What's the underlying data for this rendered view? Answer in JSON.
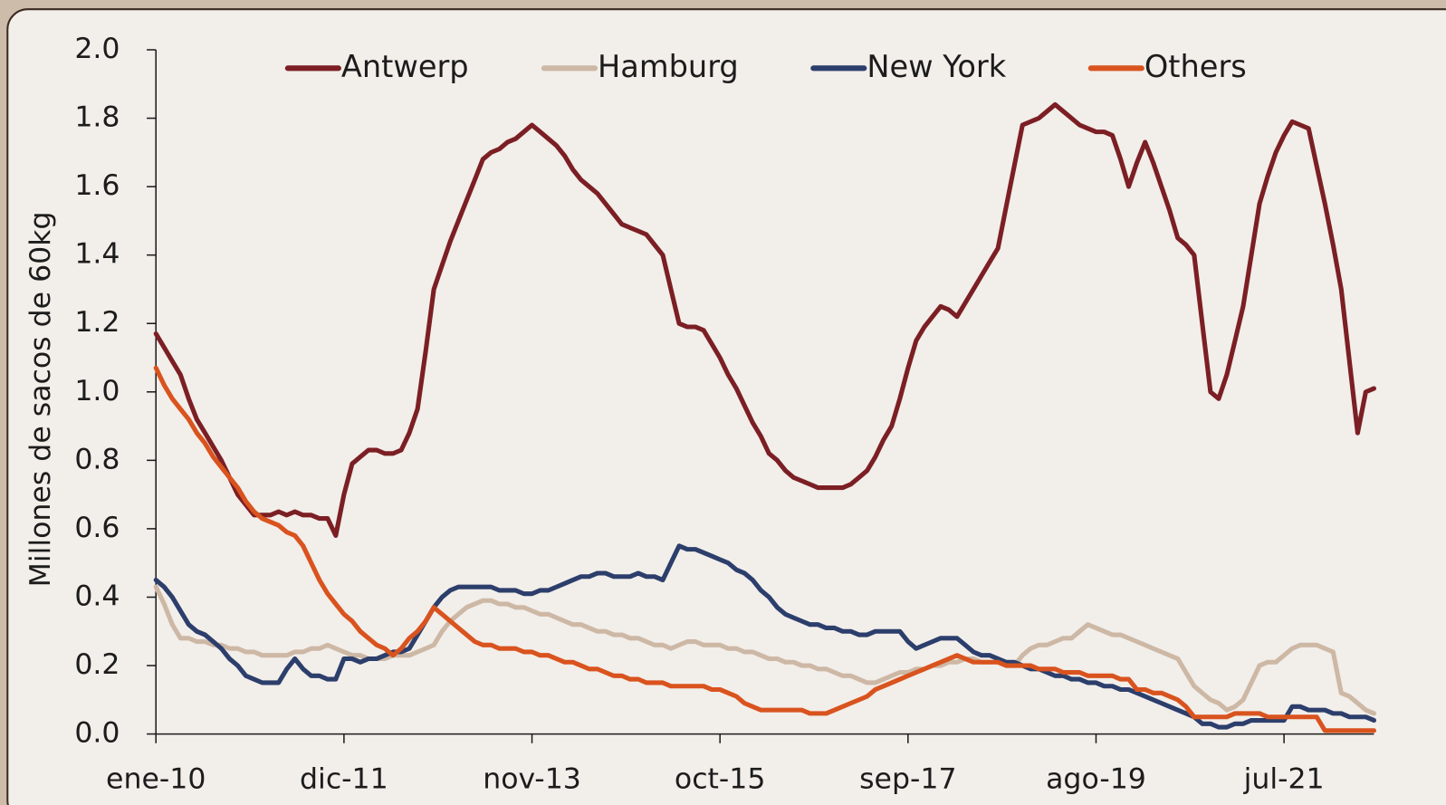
{
  "chart_data": {
    "type": "line",
    "y_label": "Millones de sacos de 60kg",
    "legend": "top",
    "grid": false,
    "categories": [
      "ene-10",
      null,
      null,
      null,
      null,
      null,
      null,
      null,
      null,
      null,
      null,
      null,
      null,
      null,
      null,
      null,
      null,
      null,
      null,
      null,
      null,
      null,
      null,
      "dic-11",
      null,
      null,
      null,
      null,
      null,
      null,
      null,
      null,
      null,
      null,
      null,
      null,
      null,
      null,
      null,
      null,
      null,
      null,
      null,
      null,
      null,
      null,
      "nov-13",
      null,
      null,
      null,
      null,
      null,
      null,
      null,
      null,
      null,
      null,
      null,
      null,
      null,
      null,
      null,
      null,
      null,
      null,
      null,
      null,
      null,
      null,
      "oct-15",
      null,
      null,
      null,
      null,
      null,
      null,
      null,
      null,
      null,
      null,
      null,
      null,
      null,
      null,
      null,
      null,
      null,
      null,
      null,
      null,
      null,
      null,
      "sep-17",
      null,
      null,
      null,
      null,
      null,
      null,
      null,
      null,
      null,
      null,
      null,
      null,
      null,
      null,
      null,
      null,
      null,
      null,
      null,
      null,
      null,
      null,
      "ago-19",
      null,
      null,
      null,
      null,
      null,
      null,
      null,
      null,
      null,
      null,
      null,
      null,
      null,
      null,
      null,
      null,
      null,
      null,
      null,
      null,
      null,
      null,
      "jul-21",
      null,
      null,
      null,
      null,
      null,
      null,
      null,
      null,
      null,
      null,
      null
    ],
    "ylim": [
      0,
      2
    ],
    "yticks": [
      {
        "value": 0,
        "label": "0.0"
      },
      0.2,
      0.4,
      0.6,
      0.8,
      {
        "value": 1,
        "label": "1.0"
      },
      1.2,
      1.4,
      1.6,
      1.8,
      {
        "value": 2,
        "label": "2.0"
      }
    ],
    "series": [
      {
        "name": "Antwerp",
        "color": "#7b1f24",
        "values": [
          1.17,
          1.13,
          1.09,
          1.05,
          0.98,
          0.92,
          0.88,
          0.84,
          0.8,
          0.75,
          0.7,
          0.67,
          0.64,
          0.64,
          0.64,
          0.65,
          0.64,
          0.65,
          0.64,
          0.64,
          0.63,
          0.63,
          0.58,
          0.7,
          0.79,
          0.81,
          0.83,
          0.83,
          0.82,
          0.82,
          0.83,
          0.88,
          0.95,
          1.12,
          1.3,
          1.37,
          1.44,
          1.5,
          1.56,
          1.62,
          1.68,
          1.7,
          1.71,
          1.73,
          1.74,
          1.76,
          1.78,
          1.76,
          1.74,
          1.72,
          1.69,
          1.65,
          1.62,
          1.6,
          1.58,
          1.55,
          1.52,
          1.49,
          1.48,
          1.47,
          1.46,
          1.43,
          1.4,
          1.3,
          1.2,
          1.19,
          1.19,
          1.18,
          1.14,
          1.1,
          1.05,
          1.01,
          0.96,
          0.91,
          0.87,
          0.82,
          0.8,
          0.77,
          0.75,
          0.74,
          0.73,
          0.72,
          0.72,
          0.72,
          0.72,
          0.73,
          0.75,
          0.77,
          0.81,
          0.86,
          0.9,
          0.98,
          1.07,
          1.15,
          1.19,
          1.22,
          1.25,
          1.24,
          1.22,
          1.26,
          1.3,
          1.34,
          1.38,
          1.42,
          1.54,
          1.66,
          1.78,
          1.79,
          1.8,
          1.82,
          1.84,
          1.82,
          1.8,
          1.78,
          1.77,
          1.76,
          1.76,
          1.75,
          1.68,
          1.6,
          1.67,
          1.73,
          1.67,
          1.6,
          1.53,
          1.45,
          1.43,
          1.4,
          1.2,
          1.0,
          0.98,
          1.05,
          1.15,
          1.25,
          1.4,
          1.55,
          1.63,
          1.7,
          1.75,
          1.79,
          1.78,
          1.77,
          1.66,
          1.55,
          1.43,
          1.3,
          1.09,
          0.88,
          1.0,
          1.01
        ]
      },
      {
        "name": "Hamburg",
        "color": "#cdb8a5",
        "values": [
          0.43,
          0.38,
          0.32,
          0.28,
          0.28,
          0.27,
          0.27,
          0.26,
          0.26,
          0.25,
          0.25,
          0.24,
          0.24,
          0.23,
          0.23,
          0.23,
          0.23,
          0.24,
          0.24,
          0.25,
          0.25,
          0.26,
          0.25,
          0.24,
          0.23,
          0.23,
          0.22,
          0.22,
          0.22,
          0.23,
          0.23,
          0.23,
          0.24,
          0.25,
          0.26,
          0.3,
          0.33,
          0.35,
          0.37,
          0.38,
          0.39,
          0.39,
          0.38,
          0.38,
          0.37,
          0.37,
          0.36,
          0.35,
          0.35,
          0.34,
          0.33,
          0.32,
          0.32,
          0.31,
          0.3,
          0.3,
          0.29,
          0.29,
          0.28,
          0.28,
          0.27,
          0.26,
          0.26,
          0.25,
          0.26,
          0.27,
          0.27,
          0.26,
          0.26,
          0.26,
          0.25,
          0.25,
          0.24,
          0.24,
          0.23,
          0.22,
          0.22,
          0.21,
          0.21,
          0.2,
          0.2,
          0.19,
          0.19,
          0.18,
          0.17,
          0.17,
          0.16,
          0.15,
          0.15,
          0.16,
          0.17,
          0.18,
          0.18,
          0.19,
          0.19,
          0.2,
          0.2,
          0.21,
          0.21,
          0.22,
          0.22,
          0.21,
          0.21,
          0.21,
          0.2,
          0.2,
          0.23,
          0.25,
          0.26,
          0.26,
          0.27,
          0.28,
          0.28,
          0.3,
          0.32,
          0.31,
          0.3,
          0.29,
          0.29,
          0.28,
          0.27,
          0.26,
          0.25,
          0.24,
          0.23,
          0.22,
          0.18,
          0.14,
          0.12,
          0.1,
          0.09,
          0.07,
          0.08,
          0.1,
          0.15,
          0.2,
          0.21,
          0.21,
          0.23,
          0.25,
          0.26,
          0.26,
          0.26,
          0.25,
          0.24,
          0.12,
          0.11,
          0.09,
          0.07,
          0.06
        ]
      },
      {
        "name": "New York",
        "color": "#2c3e6b",
        "values": [
          0.45,
          0.43,
          0.4,
          0.36,
          0.32,
          0.3,
          0.29,
          0.27,
          0.25,
          0.22,
          0.2,
          0.17,
          0.16,
          0.15,
          0.15,
          0.15,
          0.19,
          0.22,
          0.19,
          0.17,
          0.17,
          0.16,
          0.16,
          0.22,
          0.22,
          0.21,
          0.22,
          0.22,
          0.23,
          0.24,
          0.24,
          0.25,
          0.29,
          0.33,
          0.37,
          0.4,
          0.42,
          0.43,
          0.43,
          0.43,
          0.43,
          0.43,
          0.42,
          0.42,
          0.42,
          0.41,
          0.41,
          0.42,
          0.42,
          0.43,
          0.44,
          0.45,
          0.46,
          0.46,
          0.47,
          0.47,
          0.46,
          0.46,
          0.46,
          0.47,
          0.46,
          0.46,
          0.45,
          0.5,
          0.55,
          0.54,
          0.54,
          0.53,
          0.52,
          0.51,
          0.5,
          0.48,
          0.47,
          0.45,
          0.42,
          0.4,
          0.37,
          0.35,
          0.34,
          0.33,
          0.32,
          0.32,
          0.31,
          0.31,
          0.3,
          0.3,
          0.29,
          0.29,
          0.3,
          0.3,
          0.3,
          0.3,
          0.27,
          0.25,
          0.26,
          0.27,
          0.28,
          0.28,
          0.28,
          0.26,
          0.24,
          0.23,
          0.23,
          0.22,
          0.21,
          0.21,
          0.2,
          0.19,
          0.19,
          0.18,
          0.17,
          0.17,
          0.16,
          0.16,
          0.15,
          0.15,
          0.14,
          0.14,
          0.13,
          0.13,
          0.12,
          0.11,
          0.1,
          0.09,
          0.08,
          0.07,
          0.06,
          0.05,
          0.03,
          0.03,
          0.02,
          0.02,
          0.03,
          0.03,
          0.04,
          0.04,
          0.04,
          0.04,
          0.04,
          0.08,
          0.08,
          0.07,
          0.07,
          0.07,
          0.06,
          0.06,
          0.05,
          0.05,
          0.05,
          0.04
        ]
      },
      {
        "name": "Others",
        "color": "#d9531e",
        "values": [
          1.07,
          1.02,
          0.98,
          0.95,
          0.92,
          0.88,
          0.85,
          0.81,
          0.78,
          0.75,
          0.72,
          0.68,
          0.65,
          0.63,
          0.62,
          0.61,
          0.59,
          0.58,
          0.55,
          0.5,
          0.45,
          0.41,
          0.38,
          0.35,
          0.33,
          0.3,
          0.28,
          0.26,
          0.25,
          0.23,
          0.25,
          0.28,
          0.3,
          0.33,
          0.37,
          0.35,
          0.33,
          0.31,
          0.29,
          0.27,
          0.26,
          0.26,
          0.25,
          0.25,
          0.25,
          0.24,
          0.24,
          0.23,
          0.23,
          0.22,
          0.21,
          0.21,
          0.2,
          0.19,
          0.19,
          0.18,
          0.17,
          0.17,
          0.16,
          0.16,
          0.15,
          0.15,
          0.15,
          0.14,
          0.14,
          0.14,
          0.14,
          0.14,
          0.13,
          0.13,
          0.12,
          0.11,
          0.09,
          0.08,
          0.07,
          0.07,
          0.07,
          0.07,
          0.07,
          0.07,
          0.06,
          0.06,
          0.06,
          0.07,
          0.08,
          0.09,
          0.1,
          0.11,
          0.13,
          0.14,
          0.15,
          0.16,
          0.17,
          0.18,
          0.19,
          0.2,
          0.21,
          0.22,
          0.23,
          0.22,
          0.21,
          0.21,
          0.21,
          0.21,
          0.2,
          0.2,
          0.2,
          0.2,
          0.19,
          0.19,
          0.19,
          0.18,
          0.18,
          0.18,
          0.17,
          0.17,
          0.17,
          0.17,
          0.16,
          0.16,
          0.13,
          0.13,
          0.12,
          0.12,
          0.11,
          0.1,
          0.08,
          0.05,
          0.05,
          0.05,
          0.05,
          0.05,
          0.06,
          0.06,
          0.06,
          0.06,
          0.05,
          0.05,
          0.05,
          0.05,
          0.05,
          0.05,
          0.05,
          0.01,
          0.01,
          0.01,
          0.01,
          0.01,
          0.01,
          0.01
        ]
      }
    ]
  }
}
